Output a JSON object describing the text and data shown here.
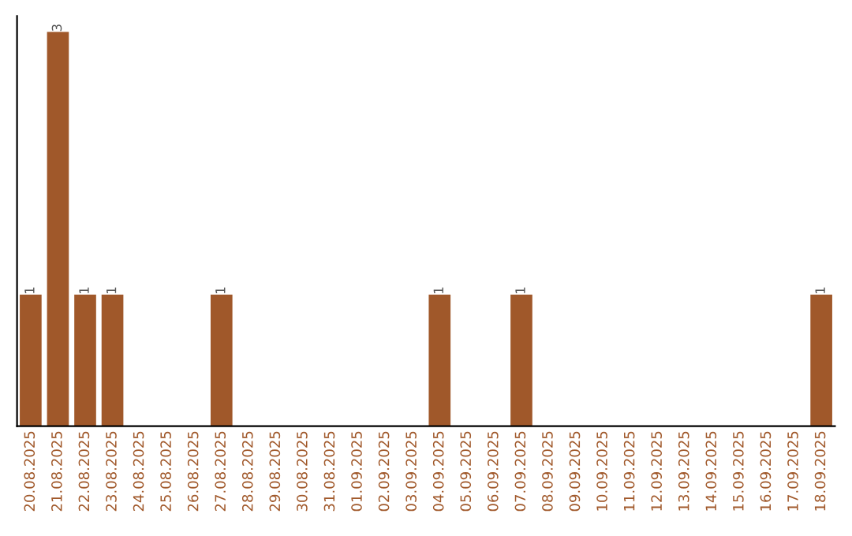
{
  "chart_data": {
    "type": "bar",
    "categories": [
      "20.08.2025",
      "21.08.2025",
      "22.08.2025",
      "23.08.2025",
      "24.08.2025",
      "25.08.2025",
      "26.08.2025",
      "27.08.2025",
      "28.08.2025",
      "29.08.2025",
      "30.08.2025",
      "31.08.2025",
      "01.09.2025",
      "02.09.2025",
      "03.09.2025",
      "04.09.2025",
      "05.09.2025",
      "06.09.2025",
      "07.09.2025",
      "08.09.2025",
      "09.09.2025",
      "10.09.2025",
      "11.09.2025",
      "12.09.2025",
      "13.09.2025",
      "14.09.2025",
      "15.09.2025",
      "16.09.2025",
      "17.09.2025",
      "18.09.2025"
    ],
    "values": [
      1,
      3,
      1,
      1,
      0,
      0,
      0,
      1,
      0,
      0,
      0,
      0,
      0,
      0,
      0,
      1,
      0,
      0,
      1,
      0,
      0,
      0,
      0,
      0,
      0,
      0,
      0,
      0,
      0,
      1
    ],
    "value_labels": [
      "1",
      "3",
      "1",
      "1",
      null,
      null,
      null,
      "1",
      null,
      null,
      null,
      null,
      null,
      null,
      null,
      "1",
      null,
      null,
      "1",
      null,
      null,
      null,
      null,
      null,
      null,
      null,
      null,
      null,
      null,
      "1"
    ],
    "color": "#a0582a",
    "grid": false,
    "legend": false
  }
}
